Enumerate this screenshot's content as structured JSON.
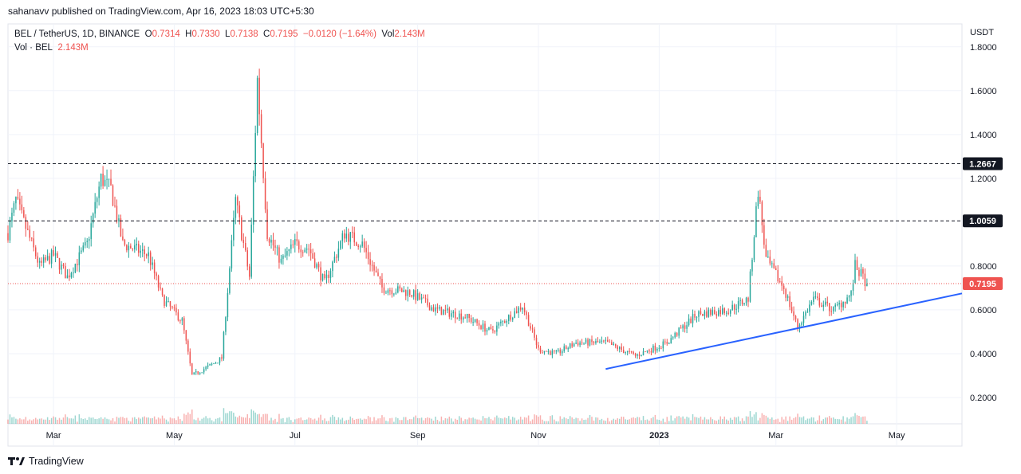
{
  "header": {
    "publisher": "sahanavv published on TradingView.com, Apr 16, 2023 18:03 UTC+5:30"
  },
  "legend": {
    "symbol": "BEL / TetherUS, 1D, BINANCE",
    "open_label": "O",
    "open": "0.7314",
    "high_label": "H",
    "high": "0.7330",
    "low_label": "L",
    "low": "0.7138",
    "close_label": "C",
    "close": "0.7195",
    "change": "−0.0120 (−1.64%)",
    "vol_label": "Vol",
    "vol": "2.143M",
    "vol_series": "Vol · BEL",
    "vol_series_value": "2.143M"
  },
  "footer": {
    "brand": "TradingView",
    "logo_icon": "tradingview-logo-icon"
  },
  "colors": {
    "up": "#26a69a",
    "down": "#ef5350",
    "trendline": "#2962ff",
    "last_price": "#ef5350",
    "level_label": "#131722"
  },
  "chart_data": {
    "type": "candlestick",
    "y_axis_unit": "USDT",
    "ylim": [
      0.08,
      1.85
    ],
    "y_ticks": [
      "1.8000",
      "1.6000",
      "1.4000",
      "1.2000",
      "0.8000",
      "0.6000",
      "0.4000",
      "0.2000"
    ],
    "y_tick_values": [
      1.8,
      1.6,
      1.4,
      1.2,
      0.8,
      0.6,
      0.4,
      0.2
    ],
    "x_ticks": [
      "Mar",
      "May",
      "Jul",
      "Sep",
      "Nov",
      "2023",
      "Mar",
      "May"
    ],
    "x_tick_dates": [
      "2022-03-01",
      "2022-05-01",
      "2022-07-01",
      "2022-09-01",
      "2022-11-01",
      "2023-01-01",
      "2023-03-01",
      "2023-05-01"
    ],
    "x_range": [
      "2022-02-06",
      "2023-06-03"
    ],
    "horizontal_levels": [
      {
        "value": 1.2667,
        "label": "1.2667",
        "style": "dashed"
      },
      {
        "value": 1.0059,
        "label": "1.0059",
        "style": "dashed"
      }
    ],
    "last_price": {
      "value": 0.7195,
      "label": "0.7195",
      "style": "dotted"
    },
    "trendline": {
      "points": [
        [
          "2022-12-05",
          0.33
        ],
        [
          "2023-06-03",
          0.675
        ]
      ]
    },
    "price_path": [
      [
        "2022-02-06",
        0.95
      ],
      [
        "2022-02-10",
        1.1
      ],
      [
        "2022-02-16",
        0.95
      ],
      [
        "2022-02-22",
        0.8
      ],
      [
        "2022-03-01",
        0.85
      ],
      [
        "2022-03-08",
        0.75
      ],
      [
        "2022-03-18",
        0.9
      ],
      [
        "2022-03-25",
        1.2
      ],
      [
        "2022-03-30",
        1.15
      ],
      [
        "2022-04-05",
        0.9
      ],
      [
        "2022-04-18",
        0.85
      ],
      [
        "2022-04-25",
        0.65
      ],
      [
        "2022-05-05",
        0.55
      ],
      [
        "2022-05-10",
        0.3
      ],
      [
        "2022-05-20",
        0.35
      ],
      [
        "2022-05-25",
        0.38
      ],
      [
        "2022-06-01",
        1.1
      ],
      [
        "2022-06-08",
        0.75
      ],
      [
        "2022-06-12",
        1.65
      ],
      [
        "2022-06-17",
        0.95
      ],
      [
        "2022-06-24",
        0.82
      ],
      [
        "2022-07-01",
        0.9
      ],
      [
        "2022-07-08",
        0.88
      ],
      [
        "2022-07-16",
        0.72
      ],
      [
        "2022-07-26",
        0.95
      ],
      [
        "2022-08-04",
        0.9
      ],
      [
        "2022-08-14",
        0.7
      ],
      [
        "2022-08-28",
        0.68
      ],
      [
        "2022-09-10",
        0.6
      ],
      [
        "2022-09-25",
        0.57
      ],
      [
        "2022-10-08",
        0.5
      ],
      [
        "2022-10-24",
        0.62
      ],
      [
        "2022-11-01",
        0.42
      ],
      [
        "2022-11-10",
        0.4
      ],
      [
        "2022-11-20",
        0.45
      ],
      [
        "2022-12-05",
        0.45
      ],
      [
        "2022-12-20",
        0.39
      ],
      [
        "2023-01-05",
        0.45
      ],
      [
        "2023-01-20",
        0.58
      ],
      [
        "2023-02-05",
        0.6
      ],
      [
        "2023-02-15",
        0.65
      ],
      [
        "2023-02-20",
        1.15
      ],
      [
        "2023-02-24",
        0.83
      ],
      [
        "2023-03-05",
        0.7
      ],
      [
        "2023-03-12",
        0.52
      ],
      [
        "2023-03-20",
        0.65
      ],
      [
        "2023-03-30",
        0.6
      ],
      [
        "2023-04-08",
        0.67
      ],
      [
        "2023-04-10",
        0.8
      ],
      [
        "2023-04-16",
        0.7195
      ]
    ]
  }
}
